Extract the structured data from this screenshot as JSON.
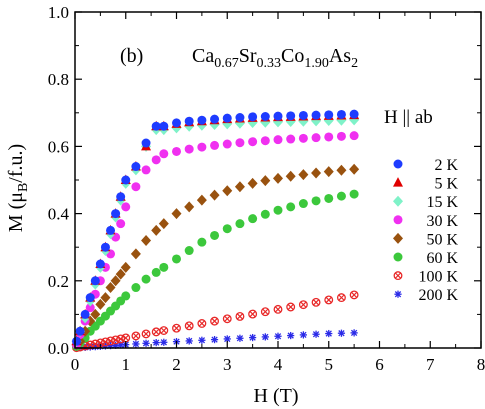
{
  "chart_data": {
    "type": "scatter",
    "panel_label": "(b)",
    "compound": {
      "parts": [
        {
          "text": "Ca",
          "sub": "0.67"
        },
        {
          "text": "Sr",
          "sub": "0.33"
        },
        {
          "text": "Co",
          "sub": "1.90"
        },
        {
          "text": "As",
          "sub": "2"
        }
      ]
    },
    "field_direction": "H || ab",
    "xlabel": "H (T)",
    "ylabel": {
      "prefix": "M (μ",
      "sub": "B",
      "suffix": "/f.u.)"
    },
    "xlim": [
      0,
      8
    ],
    "ylim": [
      0,
      1.0
    ],
    "xticks": [
      0,
      1,
      2,
      3,
      4,
      5,
      6,
      7,
      8
    ],
    "yticks": [
      0.0,
      0.2,
      0.4,
      0.6,
      0.8,
      1.0
    ],
    "ytick_labels": [
      "0.0",
      "0.2",
      "0.4",
      "0.6",
      "0.8",
      "1.0"
    ],
    "grid": false,
    "legend_position": "right",
    "x": [
      0.03,
      0.1,
      0.2,
      0.3,
      0.4,
      0.5,
      0.6,
      0.7,
      0.8,
      0.9,
      1.0,
      1.2,
      1.4,
      1.6,
      1.75,
      2.0,
      2.25,
      2.5,
      2.75,
      3.0,
      3.25,
      3.5,
      3.75,
      4.0,
      4.25,
      4.5,
      4.75,
      5.0,
      5.25,
      5.5
    ],
    "series": [
      {
        "name": "2 K",
        "marker": "circle",
        "color": "#1e3cff",
        "values": [
          0.02,
          0.05,
          0.1,
          0.15,
          0.2,
          0.25,
          0.3,
          0.35,
          0.4,
          0.45,
          0.5,
          0.54,
          0.61,
          0.66,
          0.66,
          0.67,
          0.675,
          0.678,
          0.681,
          0.684,
          0.686,
          0.688,
          0.689,
          0.69,
          0.691,
          0.692,
          0.693,
          0.694,
          0.695,
          0.696
        ]
      },
      {
        "name": "5 K",
        "marker": "triangle",
        "color": "#e00000",
        "values": [
          0.02,
          0.05,
          0.1,
          0.15,
          0.2,
          0.25,
          0.3,
          0.35,
          0.4,
          0.45,
          0.5,
          0.54,
          0.6,
          0.66,
          0.66,
          0.667,
          0.672,
          0.675,
          0.678,
          0.681,
          0.683,
          0.685,
          0.686,
          0.687,
          0.688,
          0.689,
          0.69,
          0.691,
          0.692,
          0.693
        ]
      },
      {
        "name": "15 K",
        "marker": "diamond",
        "color": "#7ff2c8",
        "values": [
          0.02,
          0.05,
          0.09,
          0.14,
          0.19,
          0.24,
          0.29,
          0.34,
          0.39,
          0.44,
          0.49,
          0.53,
          0.6,
          0.65,
          0.65,
          0.655,
          0.66,
          0.663,
          0.665,
          0.667,
          0.669,
          0.671,
          0.672,
          0.673,
          0.674,
          0.675,
          0.676,
          0.677,
          0.678,
          0.679
        ]
      },
      {
        "name": "30 K",
        "marker": "circle",
        "color": "#f030f0",
        "values": [
          0.01,
          0.04,
          0.08,
          0.12,
          0.16,
          0.2,
          0.24,
          0.28,
          0.33,
          0.37,
          0.42,
          0.48,
          0.53,
          0.56,
          0.578,
          0.585,
          0.592,
          0.598,
          0.603,
          0.607,
          0.611,
          0.614,
          0.617,
          0.62,
          0.622,
          0.624,
          0.626,
          0.628,
          0.63,
          0.632
        ]
      },
      {
        "name": "50 K",
        "marker": "diamond",
        "color": "#99520f",
        "values": [
          0.01,
          0.02,
          0.05,
          0.08,
          0.1,
          0.13,
          0.15,
          0.18,
          0.2,
          0.22,
          0.24,
          0.28,
          0.32,
          0.35,
          0.37,
          0.4,
          0.42,
          0.44,
          0.455,
          0.468,
          0.48,
          0.49,
          0.498,
          0.505,
          0.511,
          0.516,
          0.521,
          0.525,
          0.529,
          0.532
        ]
      },
      {
        "name": "60 K",
        "marker": "circle",
        "color": "#3cc83c",
        "values": [
          0.005,
          0.015,
          0.03,
          0.05,
          0.065,
          0.08,
          0.095,
          0.11,
          0.125,
          0.14,
          0.155,
          0.18,
          0.205,
          0.225,
          0.24,
          0.265,
          0.29,
          0.315,
          0.335,
          0.355,
          0.37,
          0.385,
          0.398,
          0.41,
          0.42,
          0.43,
          0.438,
          0.445,
          0.452,
          0.458
        ]
      },
      {
        "name": "100 K",
        "marker": "circle-x",
        "color": "#e82828",
        "values": [
          0.001,
          0.003,
          0.006,
          0.009,
          0.012,
          0.015,
          0.018,
          0.021,
          0.024,
          0.027,
          0.03,
          0.036,
          0.042,
          0.048,
          0.052,
          0.059,
          0.066,
          0.073,
          0.08,
          0.087,
          0.094,
          0.101,
          0.108,
          0.115,
          0.122,
          0.129,
          0.136,
          0.143,
          0.15,
          0.158
        ]
      },
      {
        "name": "200 K",
        "marker": "asterisk",
        "color": "#2a2ae8",
        "values": [
          0.0003,
          0.001,
          0.002,
          0.003,
          0.004,
          0.005,
          0.006,
          0.007,
          0.008,
          0.009,
          0.01,
          0.012,
          0.014,
          0.016,
          0.017,
          0.019,
          0.021,
          0.023,
          0.025,
          0.027,
          0.029,
          0.031,
          0.033,
          0.035,
          0.037,
          0.039,
          0.041,
          0.043,
          0.044,
          0.045
        ]
      }
    ]
  }
}
